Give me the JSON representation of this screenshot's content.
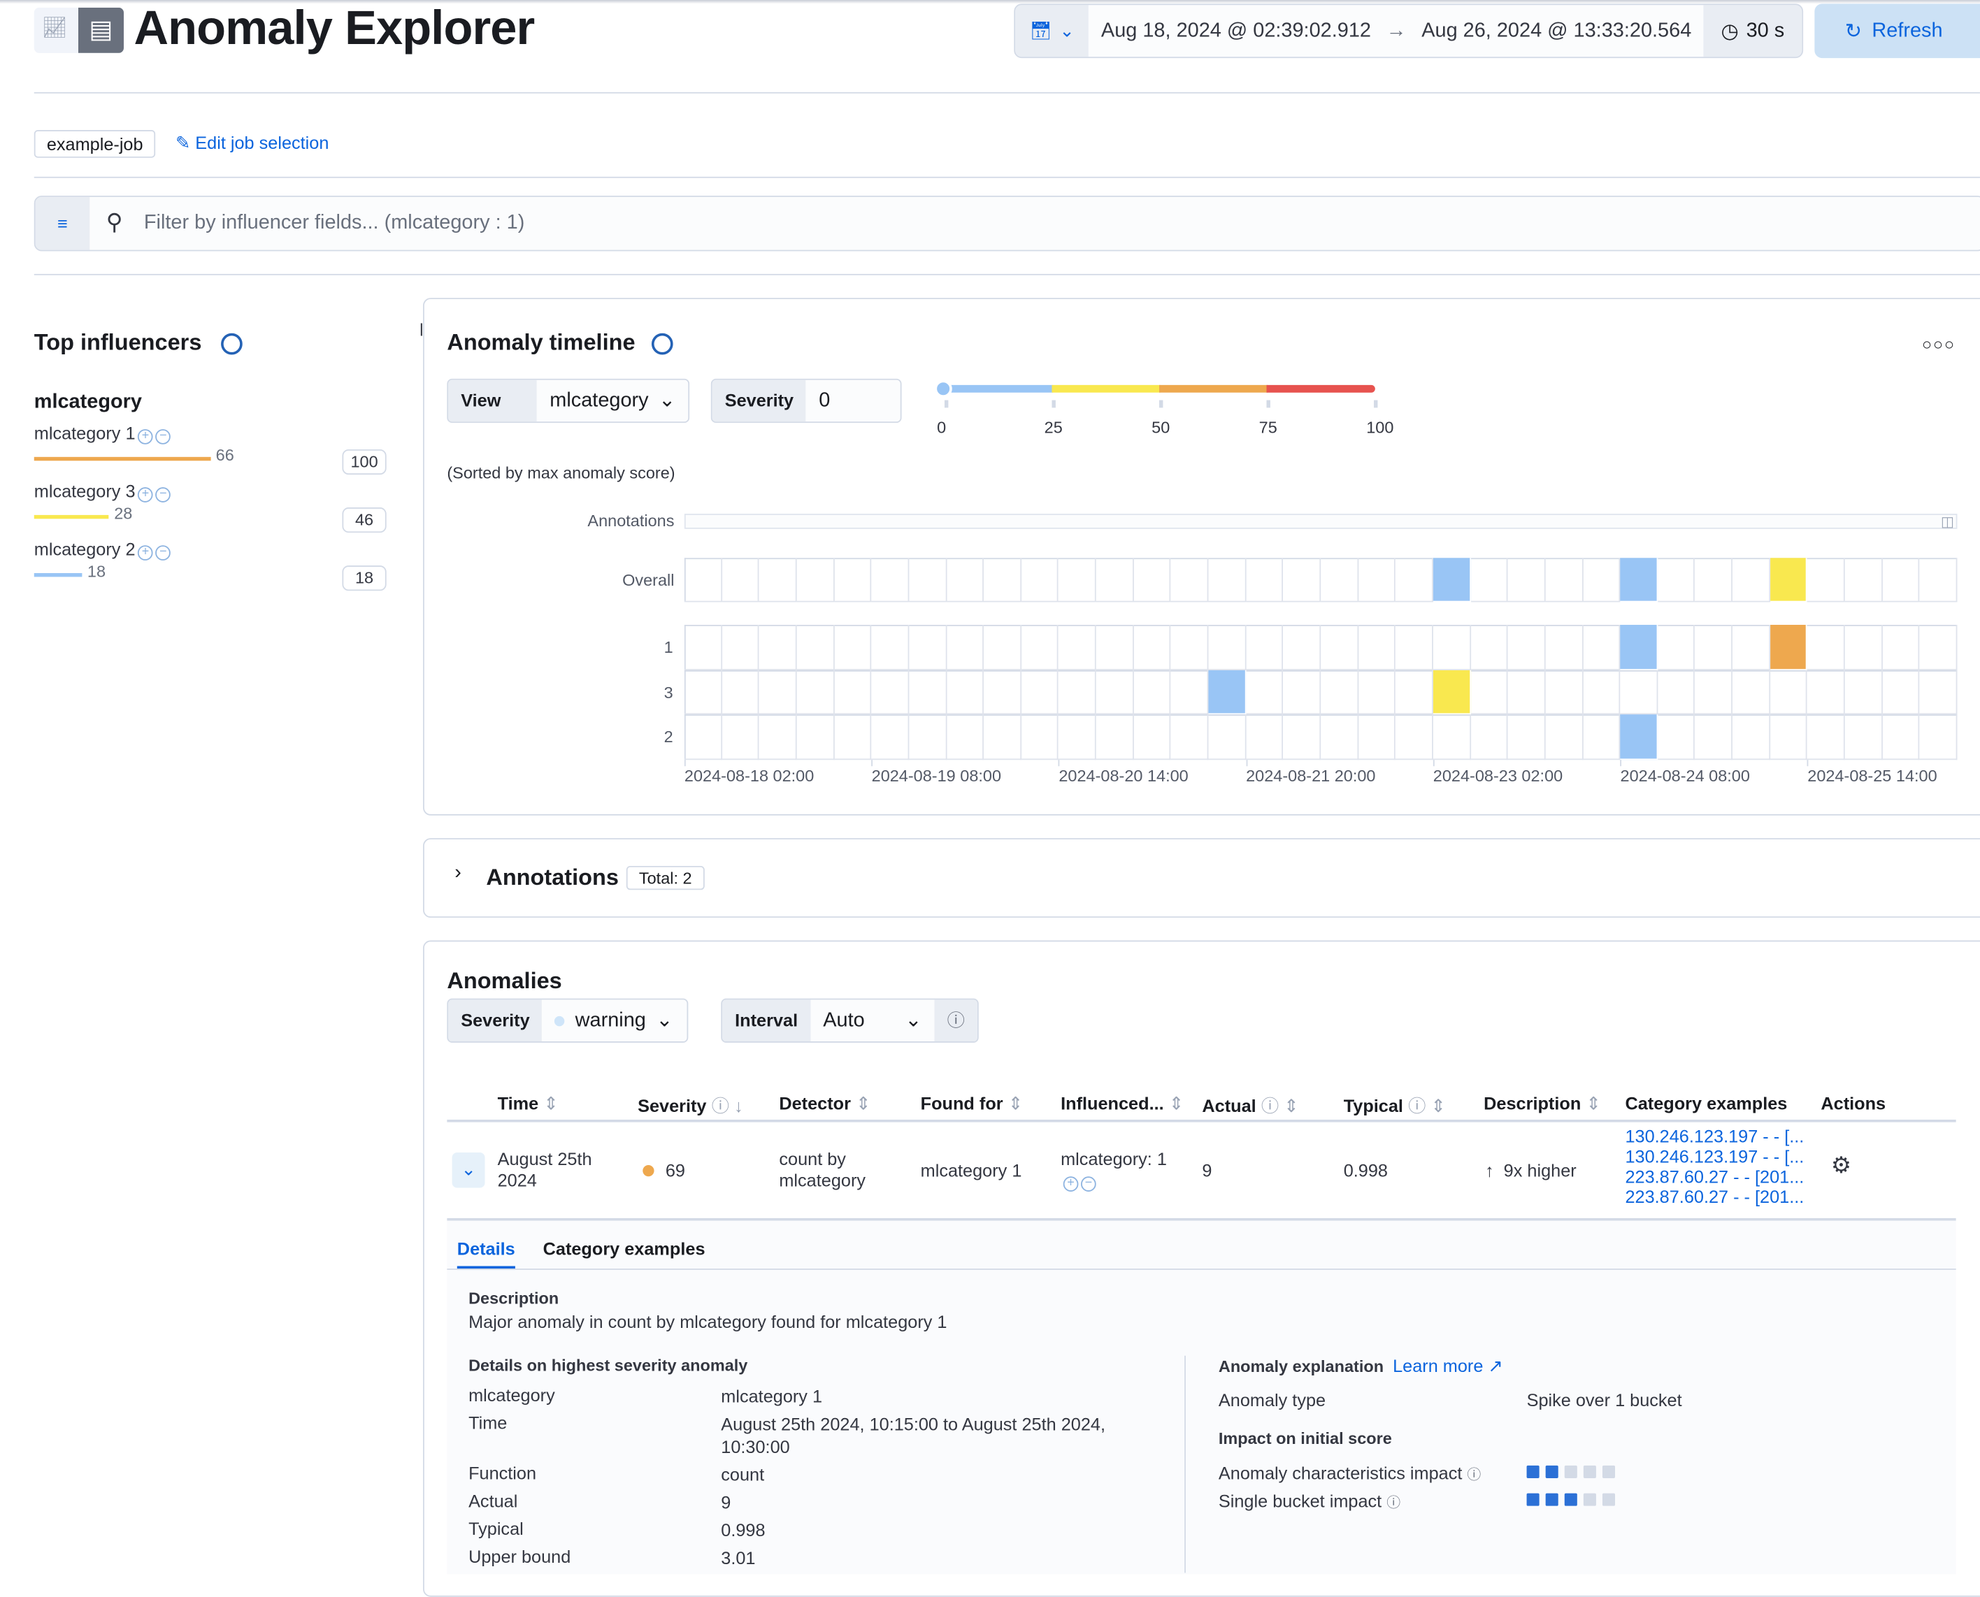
{
  "header": {
    "title": "Anomaly Explorer",
    "icons": [
      "visualize-app-icon",
      "table-icon"
    ]
  },
  "time_picker": {
    "start": "Aug 18, 2024 @ 02:39:02.912",
    "end": "Aug 26, 2024 @ 13:33:20.564",
    "refresh_interval": "30 s"
  },
  "refresh_label": "Refresh",
  "job": {
    "badge": "example-job",
    "edit_label": "Edit job selection"
  },
  "filter": {
    "placeholder": "Filter by influencer fields... (mlcategory : 1)"
  },
  "influencers": {
    "title": "Top influencers",
    "field": "mlcategory",
    "items": [
      {
        "label": "mlcategory 1",
        "value": "66",
        "max": "100",
        "color": "#eea84e",
        "fraction": 0.66
      },
      {
        "label": "mlcategory 3",
        "value": "28",
        "max": "46",
        "color": "#f9e84f",
        "fraction": 0.28
      },
      {
        "label": "mlcategory 2",
        "value": "18",
        "max": "18",
        "color": "#99c5f5",
        "fraction": 0.18
      }
    ]
  },
  "timeline": {
    "title": "Anomaly timeline",
    "view_by_label": "View by",
    "view_by_value": "mlcategory",
    "severity_label": "Severity",
    "severity_value": "0",
    "legend_ticks": [
      "0",
      "25",
      "50",
      "75",
      "100"
    ],
    "legend_colors": [
      "#99c5f5",
      "#f9e84f",
      "#eea84e",
      "#e7534f"
    ],
    "sorted_note": "(Sorted by max anomaly score)",
    "annotations_label": "Annotations",
    "overall_label": "Overall",
    "rows": [
      "1",
      "3",
      "2"
    ],
    "x_ticks": [
      "2024-08-18 02:00",
      "2024-08-19 08:00",
      "2024-08-20 14:00",
      "2024-08-21 20:00",
      "2024-08-23 02:00",
      "2024-08-24 08:00",
      "2024-08-25 14:00"
    ],
    "bucket_count": 34,
    "overall_cells": [
      {
        "bucket": 20,
        "color": "#99c5f5"
      },
      {
        "bucket": 25,
        "color": "#99c5f5"
      },
      {
        "bucket": 29,
        "color": "#f9e84f"
      }
    ],
    "row_cells": [
      {
        "row": "1",
        "bucket": 25,
        "color": "#99c5f5"
      },
      {
        "row": "1",
        "bucket": 29,
        "color": "#eea84e"
      },
      {
        "row": "3",
        "bucket": 14,
        "color": "#99c5f5"
      },
      {
        "row": "3",
        "bucket": 20,
        "color": "#f9e84f"
      },
      {
        "row": "2",
        "bucket": 25,
        "color": "#99c5f5"
      }
    ]
  },
  "annotations": {
    "title": "Annotations",
    "total": "Total: 2"
  },
  "anomalies": {
    "title": "Anomalies",
    "severity_label": "Severity",
    "severity_value": "warning",
    "interval_label": "Interval",
    "interval_value": "Auto",
    "columns": [
      "Time",
      "Severity",
      "Detector",
      "Found for",
      "Influenced...",
      "Actual",
      "Typical",
      "Description",
      "Category examples",
      "Actions"
    ],
    "row": {
      "time": "August 25th 2024",
      "severity": "69",
      "severity_color": "#eea84e",
      "detector": "count by mlcategory",
      "found_for": "mlcategory 1",
      "influenced": "mlcategory: 1",
      "actual": "9",
      "typical": "0.998",
      "description": "9x higher",
      "examples": [
        "130.246.123.197 - - [...",
        "130.246.123.197 - - [...",
        "223.87.60.27 - - [201...",
        "223.87.60.27 - - [201..."
      ]
    },
    "tabs": [
      "Details",
      "Category examples"
    ],
    "details": {
      "desc_title": "Description",
      "desc_text": "Major anomaly in count by mlcategory found for mlcategory 1",
      "highest_title": "Details on highest severity anomaly",
      "fields": [
        [
          "mlcategory",
          "mlcategory 1"
        ],
        [
          "Time",
          "August 25th 2024, 10:15:00 to August 25th 2024, 10:30:00"
        ],
        [
          "Function",
          "count"
        ],
        [
          "Actual",
          "9"
        ],
        [
          "Typical",
          "0.998"
        ],
        [
          "Upper bound",
          "3.01"
        ]
      ],
      "explanation_title": "Anomaly explanation",
      "learn_more": "Learn more",
      "anomaly_type_label": "Anomaly type",
      "anomaly_type_value": "Spike over 1 bucket",
      "impact_title": "Impact on initial score",
      "impact": [
        {
          "label": "Anomaly characteristics impact",
          "level": 2,
          "of": 5
        },
        {
          "label": "Single bucket impact",
          "level": 3,
          "of": 5
        }
      ]
    }
  }
}
